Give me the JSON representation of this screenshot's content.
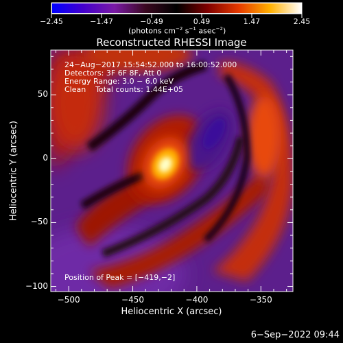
{
  "chart_data": {
    "type": "heatmap",
    "title": "Reconstructed RHESSI Image",
    "xlabel": "Heliocentric X (arcsec)",
    "ylabel": "Heliocentric Y (arcsec)",
    "xlim": [
      -514,
      -325
    ],
    "ylim": [
      -104,
      85
    ],
    "x_ticks": [
      -500,
      -450,
      -400,
      -350
    ],
    "x_tick_labels": [
      "−500",
      "−450",
      "−400",
      "−350"
    ],
    "y_ticks": [
      -100,
      -50,
      0,
      50
    ],
    "y_tick_labels": [
      "−100",
      "−50",
      "0",
      "50"
    ],
    "colorbar": {
      "range": [
        -2.45,
        2.45
      ],
      "ticks": [
        "−2.45",
        "−1.47",
        "−0.49",
        "0.49",
        "1.47",
        "2.45"
      ],
      "unit_parts": [
        "(photons cm",
        "−2",
        " s",
        "−1",
        " asec",
        "−2",
        ")"
      ],
      "colors": [
        "#0000ff",
        "#4400cc",
        "#7a1aa5",
        "#3a0820",
        "#000000",
        "#800000",
        "#e63a00",
        "#ffb000",
        "#ffffff"
      ]
    },
    "annotations": [
      "24−Aug−2017 15:54:52.000 to 16:00:52.000",
      "Detectors: 3F 6F 8F, Att 0",
      "Energy Range: 3.0 − 6.0 keV",
      "Clean    Total counts: 1.44E+05"
    ],
    "peak_label": "Position of Peak = [−419,−2]",
    "peak": [
      -419,
      -2
    ],
    "features": [
      {
        "kind": "peak",
        "x": -419,
        "y": -2,
        "value": 2.45
      },
      {
        "kind": "trough",
        "x": -387,
        "y": 18,
        "value": -1.8
      },
      {
        "kind": "trough",
        "x": -470,
        "y": -55,
        "value": -1.4
      }
    ]
  },
  "footer": {
    "timestamp": "6−Sep−2022 09:44"
  }
}
